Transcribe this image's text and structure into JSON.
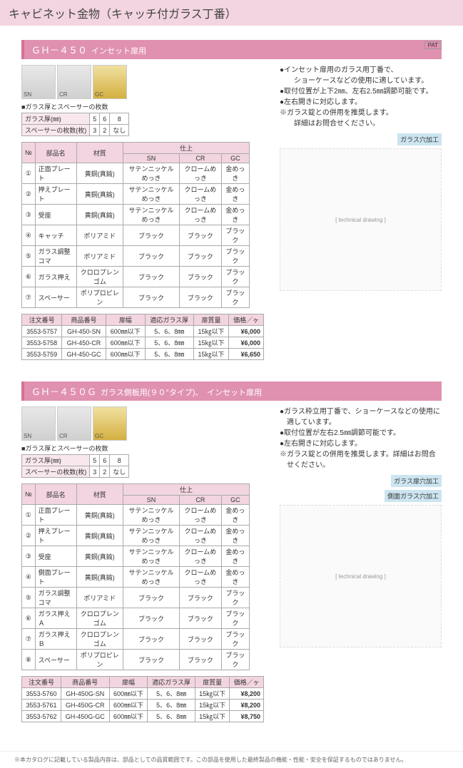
{
  "page_title": "キャビネット金物（キャッチ付ガラス丁番）",
  "foot_note": "※本カタログに記載している製品内容は、部品としての品質範囲です。この部品を使用した最終製品の機能・性能・安全を保証するものではありません。",
  "pat_label": "PAT",
  "sections": [
    {
      "id": "gh450",
      "code": "ＧＨ－４５０",
      "subtitle": "インセット扉用",
      "photos": [
        "SN",
        "CR",
        "GC"
      ],
      "bullets": [
        "●インセット扉用のガラス用丁番で、\n　ショーケースなどの使用に適しています。",
        "●取付位置が上下2㎜、左右2.5㎜調節可能です。",
        "●左右開きに対応します。",
        "※ガラス錠との併用を推奨します。\n　詳細はお問合せください。"
      ],
      "spacer_head": "■ガラス厚とスペーサーの枚数",
      "spacer_rows": [
        [
          "ガラス厚(㎜)",
          "5",
          "6",
          "8"
        ],
        [
          "スペーサーの枚数(枚)",
          "3",
          "2",
          "なし"
        ]
      ],
      "diag_label": "ガラス穴加工",
      "parts_cols": [
        "№",
        "部品名",
        "材質",
        "SN",
        "CR",
        "GC"
      ],
      "parts_finish_head": "仕上",
      "parts": [
        [
          "①",
          "正面プレート",
          "黄銅(真鍮)",
          "サテンニッケルめっき",
          "クロームめっき",
          "金めっき"
        ],
        [
          "②",
          "押えプレート",
          "黄銅(真鍮)",
          "サテンニッケルめっき",
          "クロームめっき",
          "金めっき"
        ],
        [
          "③",
          "受座",
          "黄銅(真鍮)",
          "サテンニッケルめっき",
          "クロームめっき",
          "金めっき"
        ],
        [
          "④",
          "キャッチ",
          "ポリアミド",
          "ブラック",
          "ブラック",
          "ブラック"
        ],
        [
          "⑤",
          "ガラス調整コマ",
          "ポリアミド",
          "ブラック",
          "ブラック",
          "ブラック"
        ],
        [
          "⑥",
          "ガラス押え",
          "クロロプレンゴム",
          "ブラック",
          "ブラック",
          "ブラック"
        ],
        [
          "⑦",
          "スペーサー",
          "ポリプロピレン",
          "ブラック",
          "ブラック",
          "ブラック"
        ]
      ],
      "order_cols": [
        "注文番号",
        "商品番号",
        "扉幅",
        "適応ガラス厚",
        "扉質量",
        "価格／ヶ"
      ],
      "orders": [
        [
          "3553-5757",
          "GH-450-SN",
          "600㎜以下",
          "5、6、8㎜",
          "15㎏以下",
          "¥6,000"
        ],
        [
          "3553-5758",
          "GH-450-CR",
          "600㎜以下",
          "5、6、8㎜",
          "15㎏以下",
          "¥6,000"
        ],
        [
          "3553-5759",
          "GH-450-GC",
          "600㎜以下",
          "5、6、8㎜",
          "15㎏以下",
          "¥6,650"
        ]
      ]
    },
    {
      "id": "gh450g",
      "code": "ＧＨ－４５０Ｇ",
      "subtitle": "ガラス側板用(９０°タイプ)、　インセット扉用",
      "photos": [
        "SN",
        "CR",
        "GC"
      ],
      "bullets": [
        "●ガラス枠立用丁番で、ショーケースなどの使用に適しています。",
        "●取付位置が左右2.5㎜調節可能です。",
        "●左右開きに対応します。",
        "※ガラス錠との併用を推奨します。詳細はお問合せください。"
      ],
      "spacer_head": "■ガラス厚とスペーサーの枚数",
      "spacer_rows": [
        [
          "ガラス厚(㎜)",
          "5",
          "6",
          "8"
        ],
        [
          "スペーサーの枚数(枚)",
          "3",
          "2",
          "なし"
        ]
      ],
      "diag_label": "ガラス扉穴加工",
      "diag_label2": "側面ガラス穴加工",
      "parts_cols": [
        "№",
        "部品名",
        "材質",
        "SN",
        "CR",
        "GC"
      ],
      "parts_finish_head": "仕上",
      "parts": [
        [
          "①",
          "正面プレート",
          "黄銅(真鍮)",
          "サテンニッケルめっき",
          "クロームめっき",
          "金めっき"
        ],
        [
          "②",
          "押えプレート",
          "黄銅(真鍮)",
          "サテンニッケルめっき",
          "クロームめっき",
          "金めっき"
        ],
        [
          "③",
          "受座",
          "黄銅(真鍮)",
          "サテンニッケルめっき",
          "クロームめっき",
          "金めっき"
        ],
        [
          "④",
          "側面プレート",
          "黄銅(真鍮)",
          "サテンニッケルめっき",
          "クロームめっき",
          "金めっき"
        ],
        [
          "⑤",
          "ガラス調整コマ",
          "ポリアミド",
          "ブラック",
          "ブラック",
          "ブラック"
        ],
        [
          "⑥",
          "ガラス押えＡ",
          "クロロプレンゴム",
          "ブラック",
          "ブラック",
          "ブラック"
        ],
        [
          "⑦",
          "ガラス押えＢ",
          "クロロプレンゴム",
          "ブラック",
          "ブラック",
          "ブラック"
        ],
        [
          "⑧",
          "スペーサー",
          "ポリプロピレン",
          "ブラック",
          "ブラック",
          "ブラック"
        ]
      ],
      "order_cols": [
        "注文番号",
        "商品番号",
        "扉幅",
        "適応ガラス厚",
        "扉質量",
        "価格／ヶ"
      ],
      "orders": [
        [
          "3553-5760",
          "GH-450G-SN",
          "600㎜以下",
          "5、6、8㎜",
          "15㎏以下",
          "¥8,200"
        ],
        [
          "3553-5761",
          "GH-450G-CR",
          "600㎜以下",
          "5、6、8㎜",
          "15㎏以下",
          "¥8,200"
        ],
        [
          "3553-5762",
          "GH-450G-GC",
          "600㎜以下",
          "5、6、8㎜",
          "15㎏以下",
          "¥8,750"
        ]
      ]
    }
  ]
}
